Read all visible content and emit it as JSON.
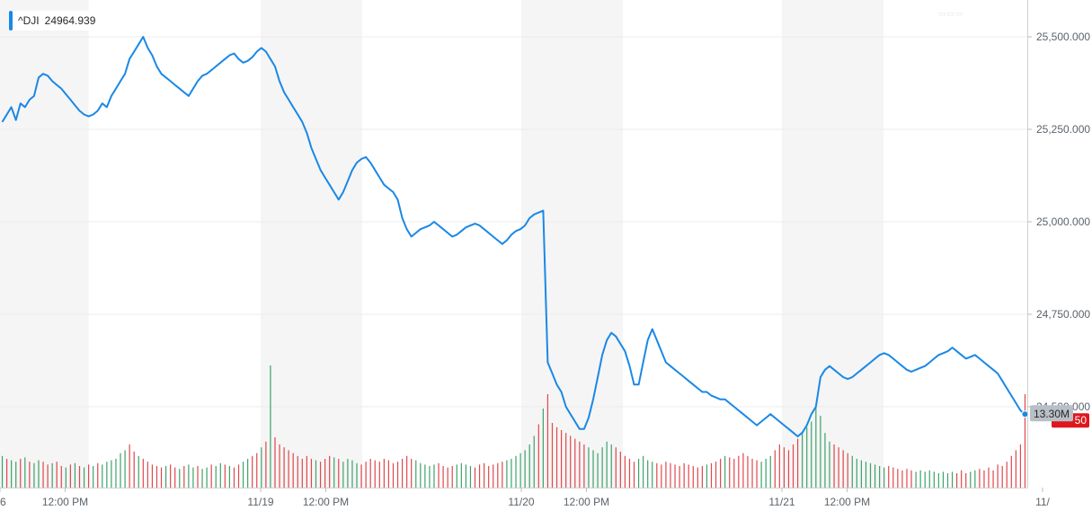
{
  "legend": {
    "symbol": "^DJI",
    "value": "24964.939"
  },
  "colors": {
    "price_line": "#1a88e6",
    "up_volume": "#3da26b",
    "down_volume": "#e0474c",
    "shade": "#f5f5f5",
    "grid": "#ececec"
  },
  "badges": {
    "volume": "13.30M",
    "price_partial": "50"
  },
  "chart_data": {
    "type": "line",
    "title": "",
    "xlabel": "",
    "ylabel": "",
    "ylim": [
      24500,
      25580
    ],
    "y_ticks": [
      {
        "value": 25500,
        "label": "25,500.000"
      },
      {
        "value": 25250,
        "label": "25,250.000"
      },
      {
        "value": 25000,
        "label": "25,000.000"
      },
      {
        "value": 24750,
        "label": "24,750.000"
      },
      {
        "value": 24500,
        "label": "24,500.000"
      }
    ],
    "x_ticks": [
      {
        "t": 0,
        "label": "6"
      },
      {
        "t": 0.25,
        "label": "12:00 PM"
      },
      {
        "t": 1,
        "label": "11/19"
      },
      {
        "t": 1.25,
        "label": "12:00 PM"
      },
      {
        "t": 2,
        "label": "11/20"
      },
      {
        "t": 2.25,
        "label": "12:00 PM"
      },
      {
        "t": 3,
        "label": "11/21"
      },
      {
        "t": 3.25,
        "label": "12:00 PM"
      },
      {
        "t": 4,
        "label": "11/"
      }
    ],
    "shaded_periods": [
      [
        0,
        0.34
      ],
      [
        1,
        1.39
      ],
      [
        2,
        2.39
      ],
      [
        3,
        3.39
      ]
    ],
    "series": [
      {
        "values": [
          25270,
          25290,
          25310,
          25275,
          25320,
          25310,
          25330,
          25340,
          25390,
          25400,
          25395,
          25380,
          25370,
          25360,
          25345,
          25330,
          25315,
          25300,
          25290,
          25285,
          25290,
          25300,
          25320,
          25310,
          25340,
          25360,
          25380,
          25400,
          25440,
          25460,
          25480,
          25500,
          25470,
          25450,
          25420,
          25400,
          25390,
          25380,
          25370,
          25360,
          25350,
          25340,
          25360,
          25380,
          25395,
          25400,
          25410,
          25420,
          25430,
          25440,
          25450,
          25455,
          25440,
          25430,
          25435,
          25445,
          25460,
          25470,
          25460,
          25440,
          25420,
          25380,
          25350,
          25330,
          25310,
          25290,
          25270,
          25240,
          25200,
          25170,
          25140,
          25120,
          25100,
          25080,
          25060,
          25080,
          25110,
          25140,
          25160,
          25170,
          25175,
          25160,
          25140,
          25120,
          25100,
          25090,
          25080,
          25060,
          25010,
          24980,
          24960,
          24970,
          24980,
          24985,
          24990,
          25000,
          24990,
          24980,
          24970,
          24960,
          24965,
          24975,
          24985,
          24990,
          24995,
          24990,
          24980,
          24970,
          24960,
          24950,
          24940,
          24950,
          24965,
          24975,
          24980,
          24990,
          25010,
          25020,
          25025,
          25030,
          24620,
          24590,
          24560,
          24540,
          24500,
          24480,
          24460,
          24440,
          24440,
          24470,
          24520,
          24580,
          24640,
          24680,
          24700,
          24690,
          24670,
          24650,
          24610,
          24560,
          24560,
          24620,
          24680,
          24710,
          24680,
          24650,
          24620,
          24610,
          24600,
          24590,
          24580,
          24570,
          24560,
          24550,
          24540,
          24540,
          24530,
          24525,
          24520,
          24520,
          24510,
          24500,
          24490,
          24480,
          24470,
          24460,
          24450,
          24460,
          24470,
          24480,
          24470,
          24460,
          24450,
          24440,
          24430,
          24420,
          24430,
          24450,
          24480,
          24500,
          24580,
          24600,
          24610,
          24600,
          24590,
          24580,
          24575,
          24580,
          24590,
          24600,
          24610,
          24620,
          24630,
          24640,
          24645,
          24640,
          24630,
          24620,
          24610,
          24600,
          24595,
          24600,
          24605,
          24610,
          24620,
          24630,
          24640,
          24645,
          24650,
          24660,
          24650,
          24640,
          24630,
          24635,
          24640,
          24630,
          24620,
          24610,
          24600,
          24590,
          24570,
          24550,
          24530,
          24510,
          24490,
          24480
        ]
      }
    ],
    "volume_series": {
      "values": [
        0.22,
        0.2,
        0.19,
        0.18,
        0.2,
        0.21,
        0.18,
        0.17,
        0.19,
        0.18,
        0.16,
        0.17,
        0.18,
        0.15,
        0.14,
        0.16,
        0.17,
        0.15,
        0.14,
        0.16,
        0.15,
        0.17,
        0.16,
        0.18,
        0.19,
        0.2,
        0.24,
        0.26,
        0.3,
        0.25,
        0.22,
        0.2,
        0.18,
        0.16,
        0.15,
        0.14,
        0.15,
        0.16,
        0.14,
        0.13,
        0.15,
        0.16,
        0.14,
        0.15,
        0.13,
        0.14,
        0.16,
        0.15,
        0.17,
        0.16,
        0.15,
        0.14,
        0.16,
        0.18,
        0.2,
        0.22,
        0.24,
        0.28,
        0.32,
        0.85,
        0.35,
        0.3,
        0.28,
        0.26,
        0.24,
        0.22,
        0.2,
        0.22,
        0.2,
        0.19,
        0.18,
        0.2,
        0.22,
        0.21,
        0.2,
        0.18,
        0.2,
        0.19,
        0.17,
        0.16,
        0.18,
        0.2,
        0.19,
        0.18,
        0.2,
        0.19,
        0.17,
        0.18,
        0.2,
        0.22,
        0.2,
        0.19,
        0.17,
        0.16,
        0.15,
        0.16,
        0.17,
        0.15,
        0.14,
        0.15,
        0.16,
        0.17,
        0.16,
        0.15,
        0.14,
        0.16,
        0.17,
        0.15,
        0.16,
        0.17,
        0.18,
        0.19,
        0.2,
        0.22,
        0.24,
        0.26,
        0.3,
        0.36,
        0.44,
        0.55,
        0.65,
        0.45,
        0.42,
        0.4,
        0.38,
        0.36,
        0.34,
        0.32,
        0.3,
        0.28,
        0.26,
        0.24,
        0.28,
        0.32,
        0.3,
        0.28,
        0.25,
        0.22,
        0.2,
        0.18,
        0.2,
        0.22,
        0.19,
        0.18,
        0.17,
        0.16,
        0.18,
        0.17,
        0.16,
        0.15,
        0.17,
        0.16,
        0.15,
        0.14,
        0.15,
        0.16,
        0.17,
        0.18,
        0.2,
        0.22,
        0.21,
        0.2,
        0.22,
        0.24,
        0.22,
        0.2,
        0.19,
        0.18,
        0.2,
        0.22,
        0.26,
        0.3,
        0.28,
        0.26,
        0.3,
        0.34,
        0.38,
        0.42,
        0.46,
        0.58,
        0.5,
        0.38,
        0.32,
        0.3,
        0.28,
        0.26,
        0.24,
        0.22,
        0.2,
        0.19,
        0.18,
        0.17,
        0.16,
        0.15,
        0.14,
        0.15,
        0.14,
        0.13,
        0.12,
        0.13,
        0.12,
        0.11,
        0.12,
        0.11,
        0.12,
        0.11,
        0.1,
        0.11,
        0.1,
        0.11,
        0.1,
        0.12,
        0.1,
        0.11,
        0.12,
        0.13,
        0.12,
        0.14,
        0.12,
        0.16,
        0.15,
        0.18,
        0.22,
        0.26,
        0.3,
        0.65
      ],
      "direction": [
        1,
        -1,
        1,
        1,
        -1,
        1,
        -1,
        1,
        1,
        -1,
        -1,
        1,
        -1,
        -1,
        1,
        -1,
        1,
        -1,
        1,
        -1,
        1,
        -1,
        1,
        1,
        1,
        1,
        1,
        1,
        -1,
        -1,
        1,
        -1,
        -1,
        -1,
        -1,
        -1,
        1,
        -1,
        -1,
        1,
        -1,
        1,
        1,
        -1,
        1,
        1,
        -1,
        1,
        1,
        -1,
        1,
        -1,
        -1,
        1,
        1,
        -1,
        -1,
        1,
        -1,
        1,
        -1,
        -1,
        -1,
        -1,
        -1,
        -1,
        -1,
        -1,
        -1,
        1,
        -1,
        -1,
        -1,
        1,
        -1,
        1,
        1,
        1,
        1,
        -1,
        -1,
        -1,
        -1,
        -1,
        -1,
        -1,
        -1,
        -1,
        -1,
        -1,
        -1,
        1,
        1,
        1,
        1,
        1,
        -1,
        -1,
        -1,
        -1,
        1,
        1,
        1,
        1,
        -1,
        -1,
        -1,
        -1,
        -1,
        -1,
        -1,
        1,
        1,
        1,
        1,
        1,
        1,
        1,
        -1,
        1,
        -1,
        -1,
        -1,
        -1,
        -1,
        -1,
        -1,
        -1,
        -1,
        1,
        1,
        1,
        1,
        1,
        1,
        -1,
        -1,
        -1,
        -1,
        -1,
        1,
        1,
        1,
        1,
        -1,
        -1,
        -1,
        -1,
        -1,
        -1,
        -1,
        -1,
        -1,
        -1,
        -1,
        1,
        -1,
        -1,
        -1,
        1,
        -1,
        -1,
        -1,
        -1,
        -1,
        -1,
        -1,
        1,
        1,
        1,
        -1,
        -1,
        -1,
        -1,
        -1,
        -1,
        1,
        1,
        1,
        1,
        1,
        1,
        1,
        -1,
        -1,
        -1,
        -1,
        1,
        1,
        1,
        1,
        1,
        1,
        1,
        1,
        -1,
        -1,
        -1,
        -1,
        -1,
        -1,
        1,
        1,
        1,
        1,
        1,
        1,
        1,
        1,
        1,
        -1,
        -1,
        -1,
        1,
        1,
        -1,
        -1,
        -1,
        -1,
        -1,
        -1,
        -1,
        -1,
        -1,
        -1,
        -1
      ]
    }
  }
}
